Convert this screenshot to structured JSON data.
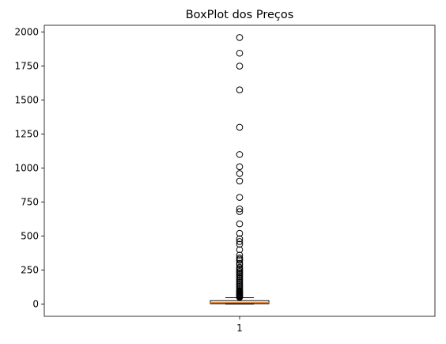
{
  "chart_data": {
    "type": "boxplot",
    "title": "BoxPlot dos Preços",
    "xlabel": "",
    "ylabel": "",
    "ylim": [
      -90,
      2050
    ],
    "yticks": [
      0,
      250,
      500,
      750,
      1000,
      1250,
      1500,
      1750,
      2000
    ],
    "categories": [
      "1"
    ],
    "box": {
      "category": "1",
      "whisker_low": 0,
      "q1": 3,
      "median": 10,
      "q3": 25,
      "whisker_high": 47,
      "fliers": [
        1960,
        1845,
        1750,
        1575,
        1300,
        1100,
        1010,
        960,
        905,
        785,
        700,
        680,
        590,
        520,
        480,
        460,
        440,
        400,
        360,
        340,
        330,
        320,
        300,
        290,
        270,
        260,
        250,
        240,
        230,
        220,
        210,
        200,
        190,
        180,
        170,
        160,
        150,
        140,
        130,
        120,
        110,
        100,
        95,
        90,
        85,
        80,
        75,
        70,
        65,
        60,
        55,
        50
      ]
    },
    "colors": {
      "median": "#ff7f0e",
      "box": "#000000",
      "flier_edge": "#000000"
    },
    "grid": false,
    "legend": "none"
  }
}
